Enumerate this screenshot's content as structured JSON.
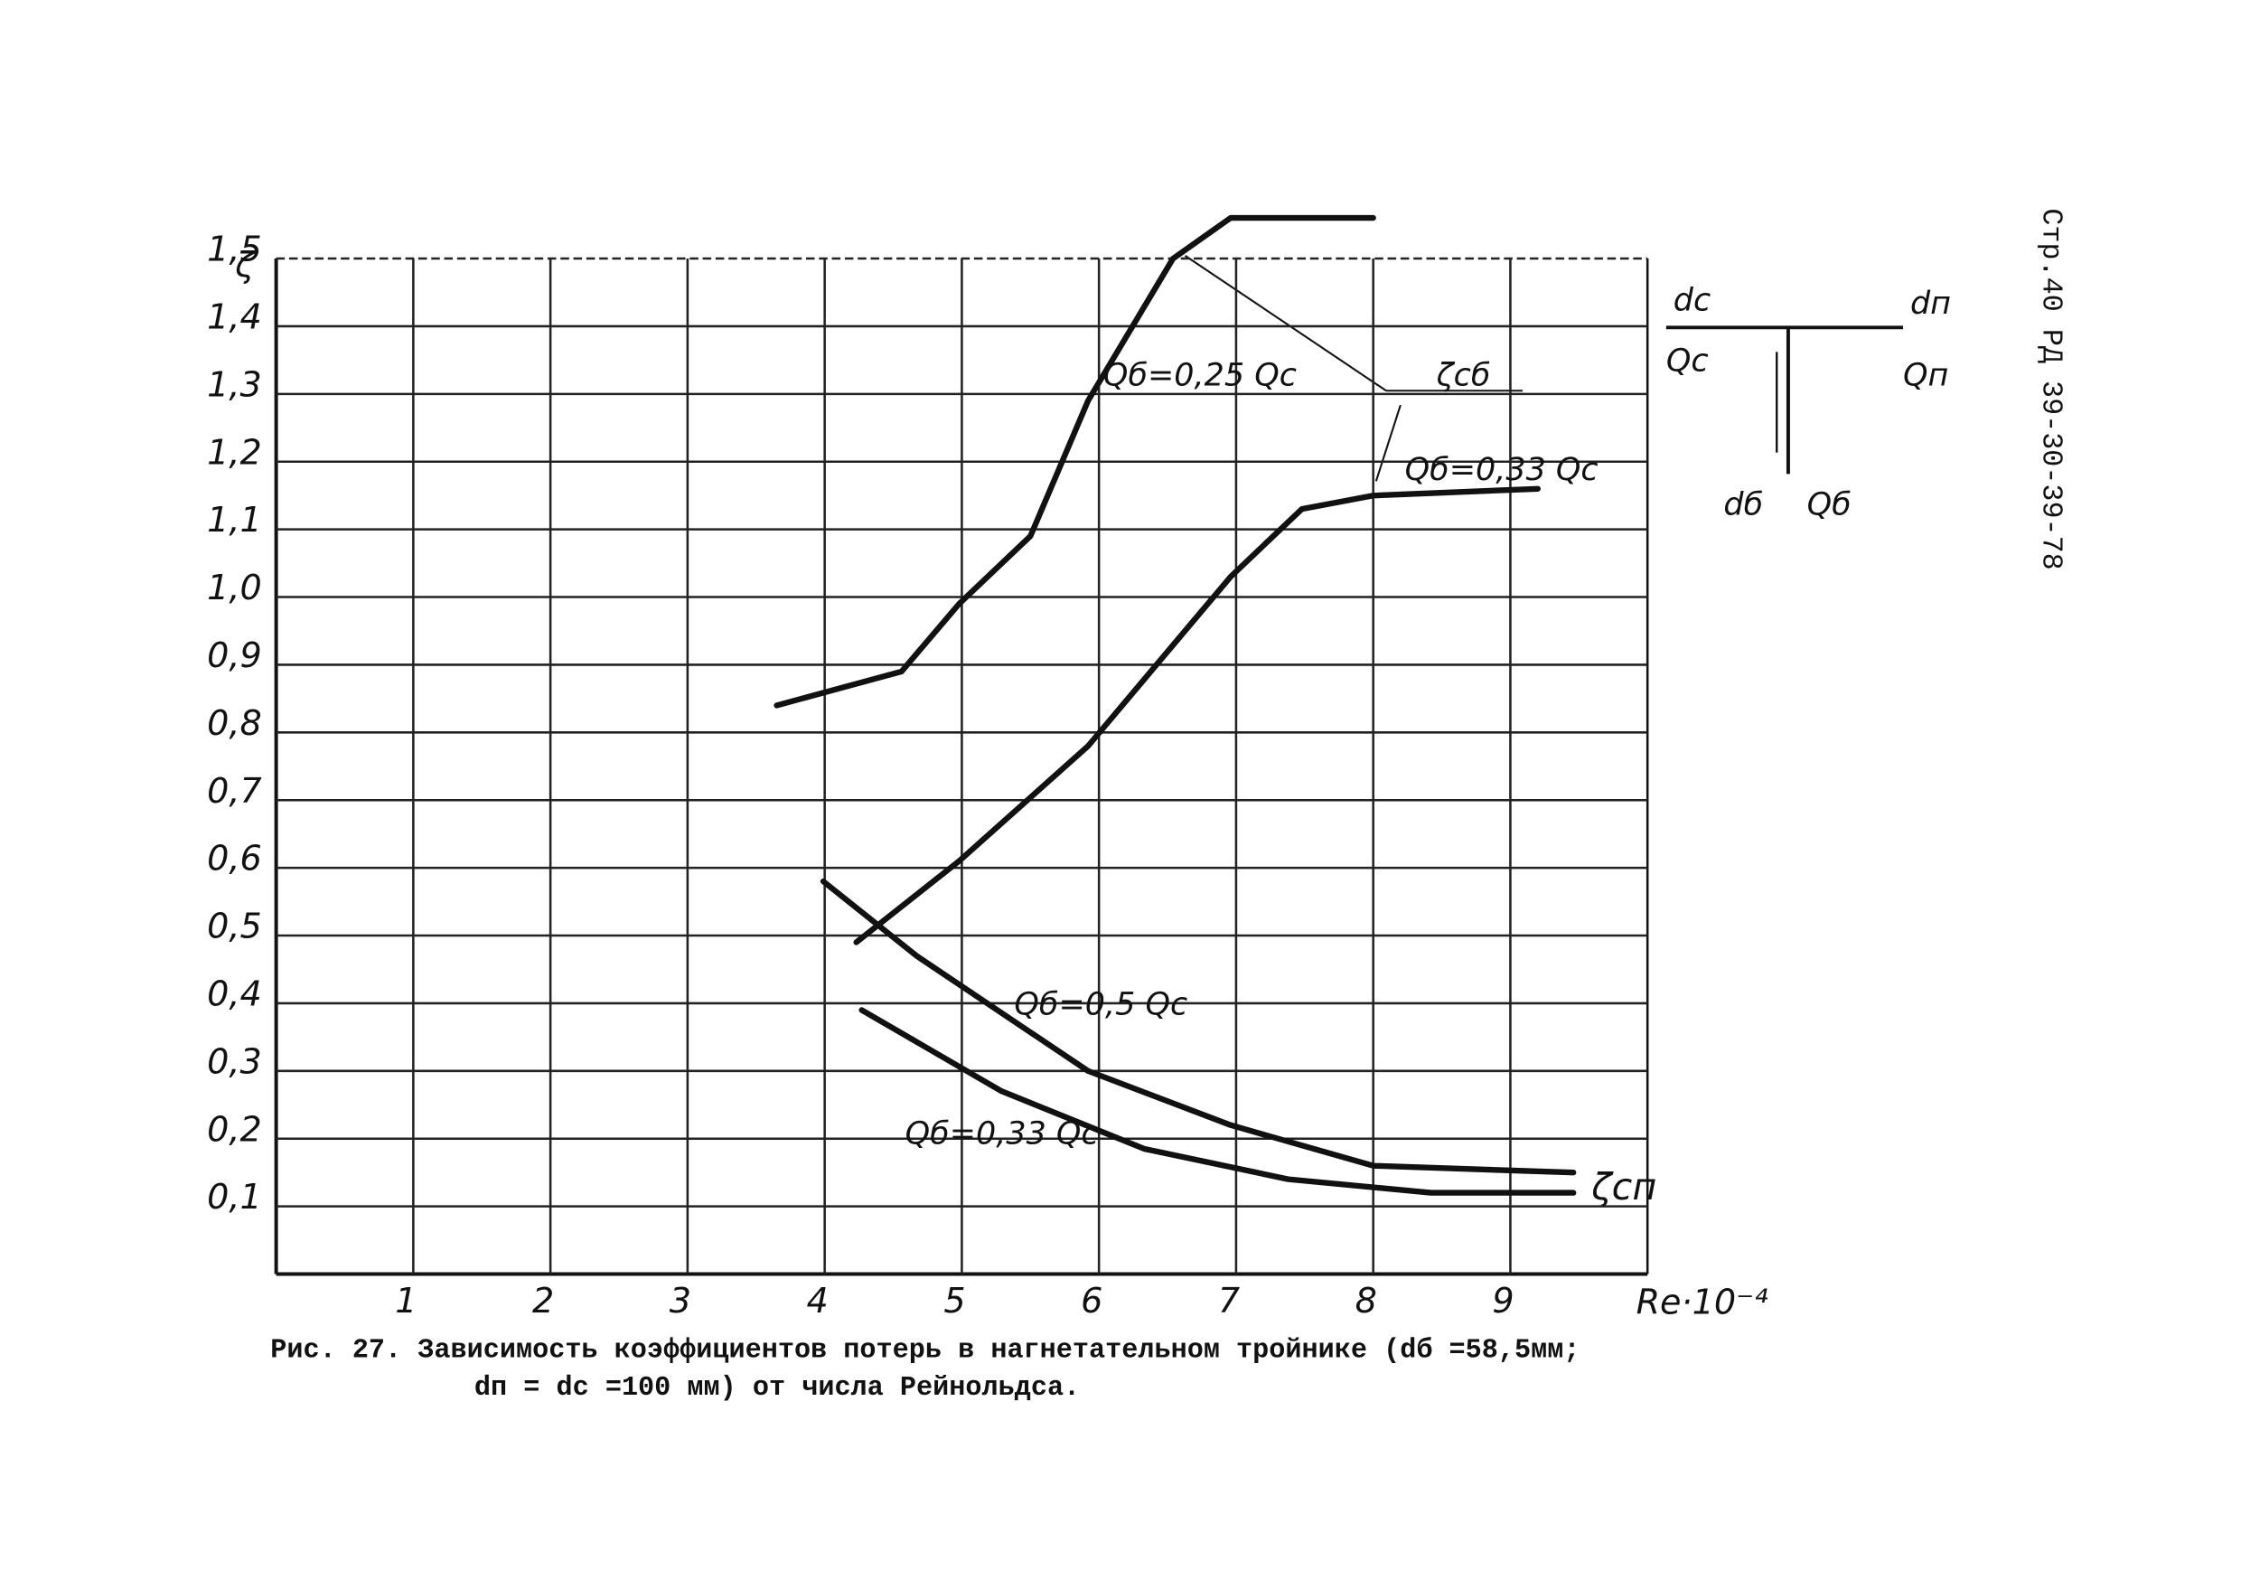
{
  "chart_data": {
    "type": "line",
    "ylabel": "ζ",
    "xlabel": "Re·10⁻⁴",
    "xlim": [
      0,
      10
    ],
    "xticks": [
      1,
      2,
      3,
      4,
      5,
      6,
      7,
      8,
      9
    ],
    "ylim": [
      0,
      1.5
    ],
    "yticks": [
      {
        "value": 0.1,
        "label": "0,1"
      },
      {
        "value": 0.2,
        "label": "0,2"
      },
      {
        "value": 0.3,
        "label": "0,3"
      },
      {
        "value": 0.4,
        "label": "0,4"
      },
      {
        "value": 0.5,
        "label": "0,5"
      },
      {
        "value": 0.6,
        "label": "0,6"
      },
      {
        "value": 0.7,
        "label": "0,7"
      },
      {
        "value": 0.8,
        "label": "0,8"
      },
      {
        "value": 0.9,
        "label": "0,9"
      },
      {
        "value": 1.0,
        "label": "1,0"
      },
      {
        "value": 1.1,
        "label": "1,1"
      },
      {
        "value": 1.2,
        "label": "1,2"
      },
      {
        "value": 1.3,
        "label": "1,3"
      },
      {
        "value": 1.4,
        "label": "1,4"
      },
      {
        "value": 1.5,
        "label": "1,5"
      }
    ],
    "grid": true,
    "series": [
      {
        "name": "Qб=0,25 Qс",
        "color": "#111111",
        "x": [
          3.65,
          4.56,
          4.98,
          5.5,
          5.92,
          6.54,
          6.96,
          8.0
        ],
        "values": [
          0.84,
          0.89,
          0.99,
          1.09,
          1.29,
          1.5,
          1.56,
          1.56
        ]
      },
      {
        "name": "Qб=0,33 Qс",
        "color": "#111111",
        "x": [
          4.23,
          4.98,
          5.92,
          6.96,
          7.48,
          8.0,
          9.2
        ],
        "values": [
          0.49,
          0.61,
          0.78,
          1.03,
          1.13,
          1.15,
          1.16
        ]
      },
      {
        "name": "Qб=0,5 Qс",
        "color": "#111111",
        "x": [
          3.99,
          4.67,
          5.92,
          6.96,
          8.0,
          9.46
        ],
        "values": [
          0.58,
          0.47,
          0.3,
          0.22,
          0.16,
          0.15
        ]
      },
      {
        "name": "Qб=0,33 Qс",
        "color": "#111111",
        "x": [
          4.27,
          5.29,
          6.33,
          7.38,
          8.42,
          9.46
        ],
        "values": [
          0.39,
          0.27,
          0.185,
          0.14,
          0.12,
          0.12
        ]
      }
    ],
    "annotations": [
      "ζсб",
      "ζсп"
    ],
    "scheme_labels": [
      "dс",
      "Qс",
      "dп",
      "Qп",
      "dб",
      "Qб"
    ],
    "caption": [
      "Рис. 27. Зависимость коэффициентов потерь в нагнетательном тройнике (dб =58,5мм;",
      "dп = dс =100 мм) от числа Рейнольдса."
    ],
    "side_text": "Стр.40 РД 39-30-39-78"
  }
}
